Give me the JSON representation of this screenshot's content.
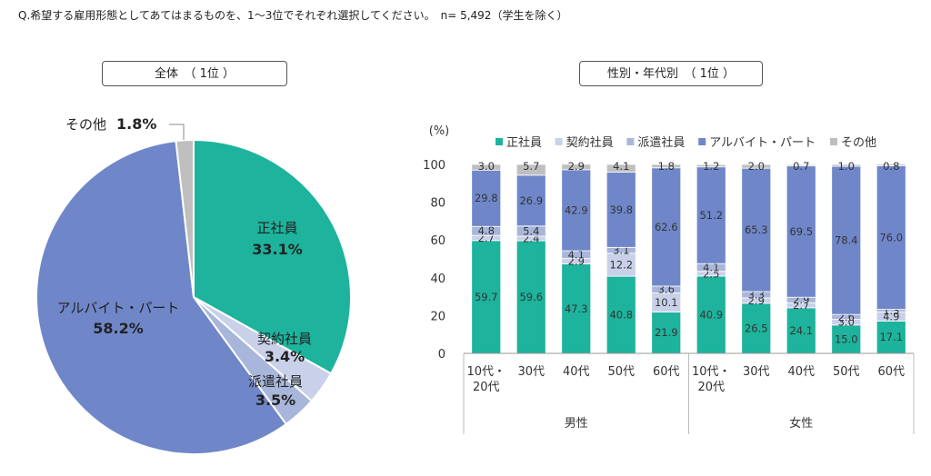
{
  "question": "Q.希望する雇用形態としてあてはまるものを、1～3位でそれぞれ選択してください。　n= 5,492（学生を除く）",
  "pie_panel_title": "全体　（ 1位 ）",
  "bar_panel_title": "性別・年代別　（ 1位 ）",
  "colors": {
    "正社員": "#1db39c",
    "契約社員": "#c9d1ea",
    "派遣社員": "#a9b6db",
    "アルバイト・パート": "#6f87c9",
    "その他": "#bfbfbf"
  },
  "chart_data": [
    {
      "type": "pie",
      "title": "全体　（ 1位 ）",
      "slices": [
        {
          "label": "正社員",
          "value": 33.1,
          "value_label": "33.1%"
        },
        {
          "label": "契約社員",
          "value": 3.4,
          "value_label": "3.4%"
        },
        {
          "label": "派遣社員",
          "value": 3.5,
          "value_label": "3.5%"
        },
        {
          "label": "アルバイト・パート",
          "value": 58.2,
          "value_label": "58.2%"
        },
        {
          "label": "その他",
          "value": 1.8,
          "value_label": "1.8%"
        }
      ]
    },
    {
      "type": "bar",
      "stacked": true,
      "title": "性別・年代別　（ 1位 ）",
      "ylabel": "(%)",
      "ylim": [
        0,
        100
      ],
      "yticks": [
        0,
        20,
        40,
        60,
        80,
        100
      ],
      "legend_position": "top",
      "categories": [
        "10代・\n20代",
        "30代",
        "40代",
        "50代",
        "60代",
        "10代・\n20代",
        "30代",
        "40代",
        "50代",
        "60代"
      ],
      "groups": [
        {
          "label": "男性",
          "categories": [
            "10代・\n20代",
            "30代",
            "40代",
            "50代",
            "60代"
          ]
        },
        {
          "label": "女性",
          "categories": [
            "10代・\n20代",
            "30代",
            "40代",
            "50代",
            "60代"
          ]
        }
      ],
      "series": [
        {
          "name": "正社員",
          "values": [
            59.7,
            59.6,
            47.3,
            40.8,
            21.9,
            40.9,
            26.5,
            24.1,
            15.0,
            17.1
          ]
        },
        {
          "name": "契約社員",
          "values": [
            2.7,
            2.4,
            2.9,
            12.2,
            10.1,
            2.5,
            2.9,
            2.7,
            3.0,
            4.9
          ]
        },
        {
          "name": "派遣社員",
          "values": [
            4.8,
            5.4,
            4.1,
            3.1,
            3.6,
            4.1,
            3.3,
            2.9,
            2.6,
            1.3
          ]
        },
        {
          "name": "アルバイト・パート",
          "values": [
            29.8,
            26.9,
            42.9,
            39.8,
            62.6,
            51.2,
            65.3,
            69.5,
            78.4,
            76.0
          ]
        },
        {
          "name": "その他",
          "values": [
            3.0,
            5.7,
            2.9,
            4.1,
            1.8,
            1.2,
            2.0,
            0.7,
            1.0,
            0.8
          ]
        }
      ]
    }
  ]
}
